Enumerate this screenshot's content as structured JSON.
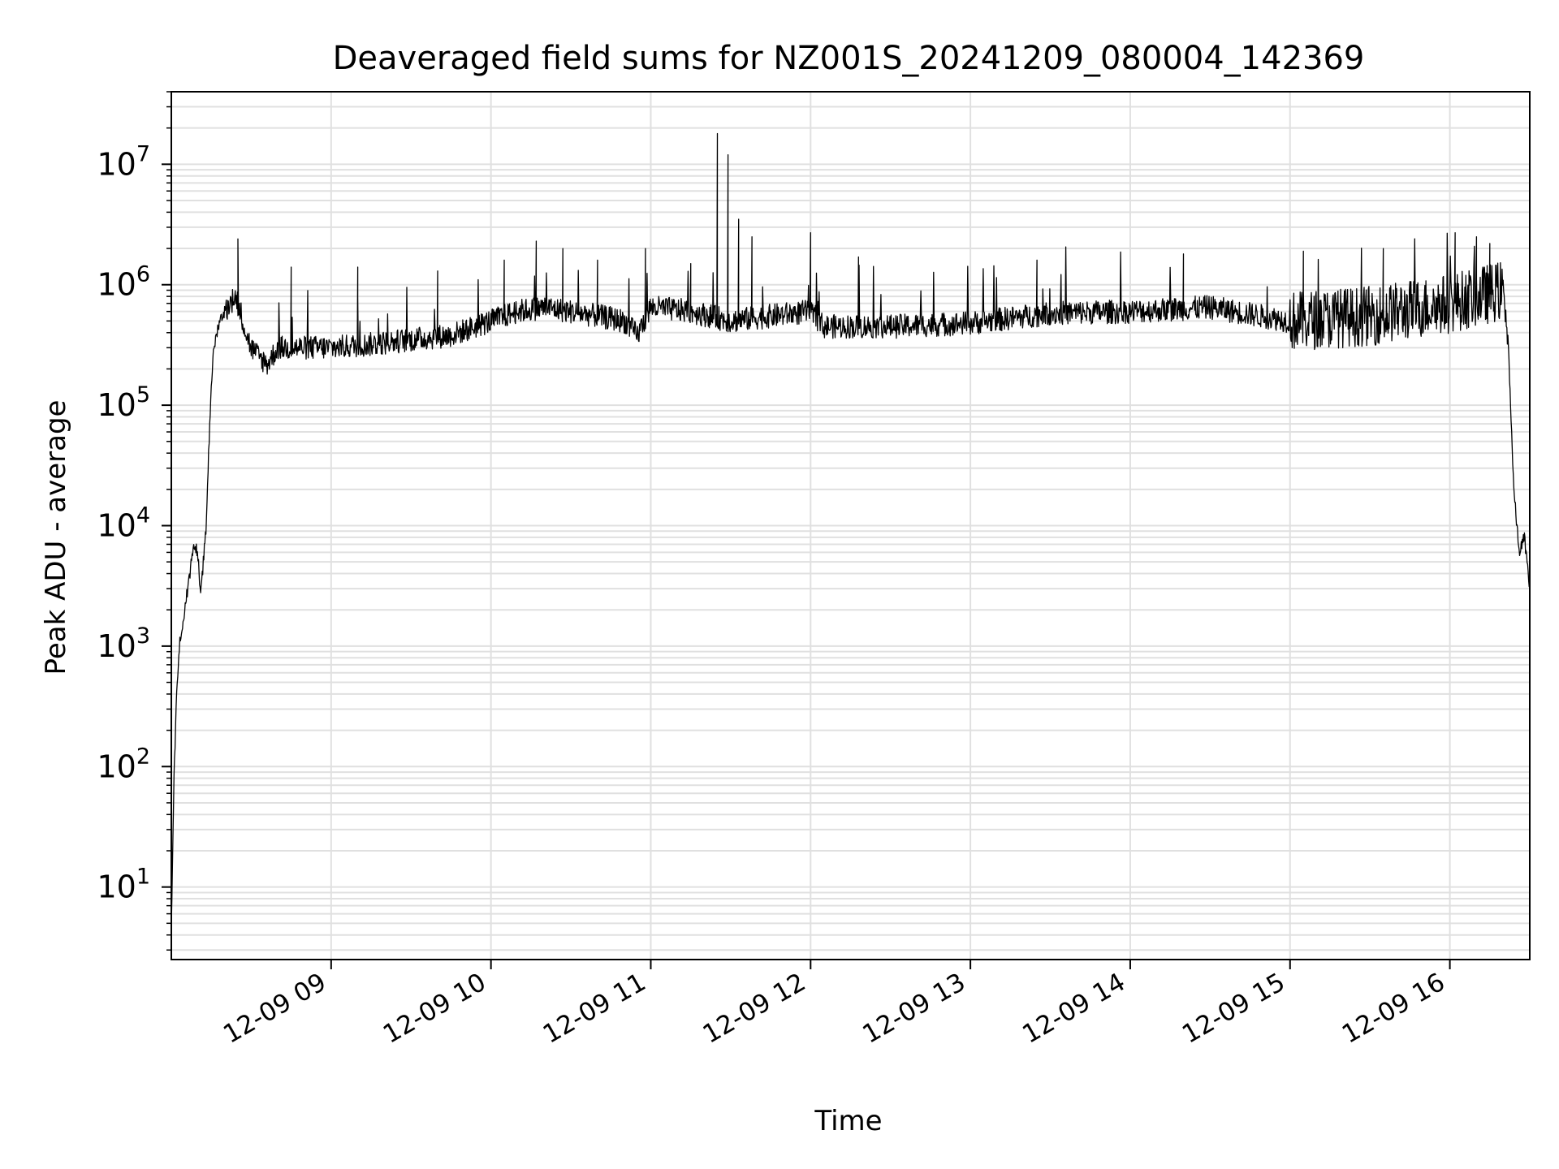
{
  "chart_data": {
    "type": "line",
    "title": "Deaveraged field sums for NZ001S_20241209_080004_142369",
    "xlabel": "Time",
    "ylabel": "Peak ADU - average",
    "yscale": "log",
    "grid": true,
    "legend": "none",
    "line_color": "#000000",
    "grid_color": "#e0e0e0",
    "x_range": [
      "2024-12-09 08:00",
      "2024-12-09 16:30"
    ],
    "ylim": [
      2.5,
      40000000
    ],
    "x_ticks": [
      {
        "value": "2024-12-09 09:00",
        "label": "12-09 09"
      },
      {
        "value": "2024-12-09 10:00",
        "label": "12-09 10"
      },
      {
        "value": "2024-12-09 11:00",
        "label": "12-09 11"
      },
      {
        "value": "2024-12-09 12:00",
        "label": "12-09 12"
      },
      {
        "value": "2024-12-09 13:00",
        "label": "12-09 13"
      },
      {
        "value": "2024-12-09 14:00",
        "label": "12-09 14"
      },
      {
        "value": "2024-12-09 15:00",
        "label": "12-09 15"
      },
      {
        "value": "2024-12-09 16:00",
        "label": "12-09 16"
      }
    ],
    "y_ticks": [
      {
        "value": 10,
        "base": "10",
        "exp": "1"
      },
      {
        "value": 100,
        "base": "10",
        "exp": "2"
      },
      {
        "value": 1000,
        "base": "10",
        "exp": "3"
      },
      {
        "value": 10000,
        "base": "10",
        "exp": "4"
      },
      {
        "value": 100000,
        "base": "10",
        "exp": "5"
      },
      {
        "value": 1000000,
        "base": "10",
        "exp": "6"
      },
      {
        "value": 10000000,
        "base": "10",
        "exp": "7"
      }
    ],
    "series": [
      {
        "points": [
          [
            "2024-12-09 08:00",
            5
          ],
          [
            "2024-12-09 08:01",
            80
          ],
          [
            "2024-12-09 08:02",
            400
          ],
          [
            "2024-12-09 08:03",
            1000
          ],
          [
            "2024-12-09 08:05",
            2000
          ],
          [
            "2024-12-09 08:07",
            4000
          ],
          [
            "2024-12-09 08:08",
            6000
          ],
          [
            "2024-12-09 08:09",
            7000
          ],
          [
            "2024-12-09 08:10",
            5500
          ],
          [
            "2024-12-09 08:11",
            2500
          ],
          [
            "2024-12-09 08:12",
            5000
          ],
          [
            "2024-12-09 08:13",
            9000
          ],
          [
            "2024-12-09 08:14",
            40000
          ],
          [
            "2024-12-09 08:15",
            150000
          ],
          [
            "2024-12-09 08:16",
            300000
          ],
          [
            "2024-12-09 08:18",
            500000
          ],
          [
            "2024-12-09 08:20",
            600000
          ],
          [
            "2024-12-09 08:22",
            700000
          ],
          [
            "2024-12-09 08:24",
            800000
          ],
          [
            "2024-12-09 08:26",
            600000
          ],
          [
            "2024-12-09 08:28",
            400000
          ],
          [
            "2024-12-09 08:30",
            300000
          ],
          [
            "2024-12-09 08:33",
            250000
          ],
          [
            "2024-12-09 08:36",
            220000
          ],
          [
            "2024-12-09 08:40",
            300000
          ],
          [
            "2024-12-09 08:50",
            300000
          ],
          [
            "2024-12-09 09:00",
            300000
          ],
          [
            "2024-12-09 09:15",
            320000
          ],
          [
            "2024-12-09 09:30",
            350000
          ],
          [
            "2024-12-09 09:45",
            380000
          ],
          [
            "2024-12-09 10:00",
            500000
          ],
          [
            "2024-12-09 10:10",
            600000
          ],
          [
            "2024-12-09 10:20",
            650000
          ],
          [
            "2024-12-09 10:40",
            550000
          ],
          [
            "2024-12-09 10:50",
            500000
          ],
          [
            "2024-12-09 10:55",
            380000
          ],
          [
            "2024-12-09 11:00",
            650000
          ],
          [
            "2024-12-09 11:15",
            600000
          ],
          [
            "2024-12-09 11:30",
            500000
          ],
          [
            "2024-12-09 11:45",
            550000
          ],
          [
            "2024-12-09 12:00",
            600000
          ],
          [
            "2024-12-09 12:05",
            450000
          ],
          [
            "2024-12-09 12:30",
            450000
          ],
          [
            "2024-12-09 13:00",
            480000
          ],
          [
            "2024-12-09 13:30",
            580000
          ],
          [
            "2024-12-09 14:00",
            600000
          ],
          [
            "2024-12-09 14:30",
            650000
          ],
          [
            "2024-12-09 15:00",
            500000
          ],
          [
            "2024-12-09 15:30",
            550000
          ],
          [
            "2024-12-09 16:00",
            700000
          ],
          [
            "2024-12-09 16:20",
            900000
          ],
          [
            "2024-12-09 16:22",
            300000
          ],
          [
            "2024-12-09 16:24",
            20000
          ],
          [
            "2024-12-09 16:26",
            6000
          ],
          [
            "2024-12-09 16:28",
            8000
          ],
          [
            "2024-12-09 16:30",
            3000
          ]
        ],
        "spikes": [
          [
            "2024-12-09 08:25",
            2400000
          ],
          [
            "2024-12-09 08:45",
            1400000
          ],
          [
            "2024-12-09 09:10",
            1400000
          ],
          [
            "2024-12-09 09:40",
            1300000
          ],
          [
            "2024-12-09 10:05",
            1600000
          ],
          [
            "2024-12-09 10:17",
            2300000
          ],
          [
            "2024-12-09 10:27",
            2000000
          ],
          [
            "2024-12-09 10:40",
            1600000
          ],
          [
            "2024-12-09 10:58",
            2000000
          ],
          [
            "2024-12-09 11:15",
            1500000
          ],
          [
            "2024-12-09 11:25",
            18000000
          ],
          [
            "2024-12-09 11:29",
            12000000
          ],
          [
            "2024-12-09 11:33",
            3500000
          ],
          [
            "2024-12-09 11:38",
            2500000
          ],
          [
            "2024-12-09 12:00",
            2700000
          ],
          [
            "2024-12-09 12:18",
            1700000
          ],
          [
            "2024-12-09 13:25",
            1600000
          ],
          [
            "2024-12-09 14:20",
            1800000
          ],
          [
            "2024-12-09 15:05",
            1900000
          ],
          [
            "2024-12-09 15:35",
            2000000
          ],
          [
            "2024-12-09 16:02",
            2700000
          ],
          [
            "2024-12-09 16:10",
            2500000
          ],
          [
            "2024-12-09 16:15",
            2200000
          ]
        ]
      }
    ]
  }
}
